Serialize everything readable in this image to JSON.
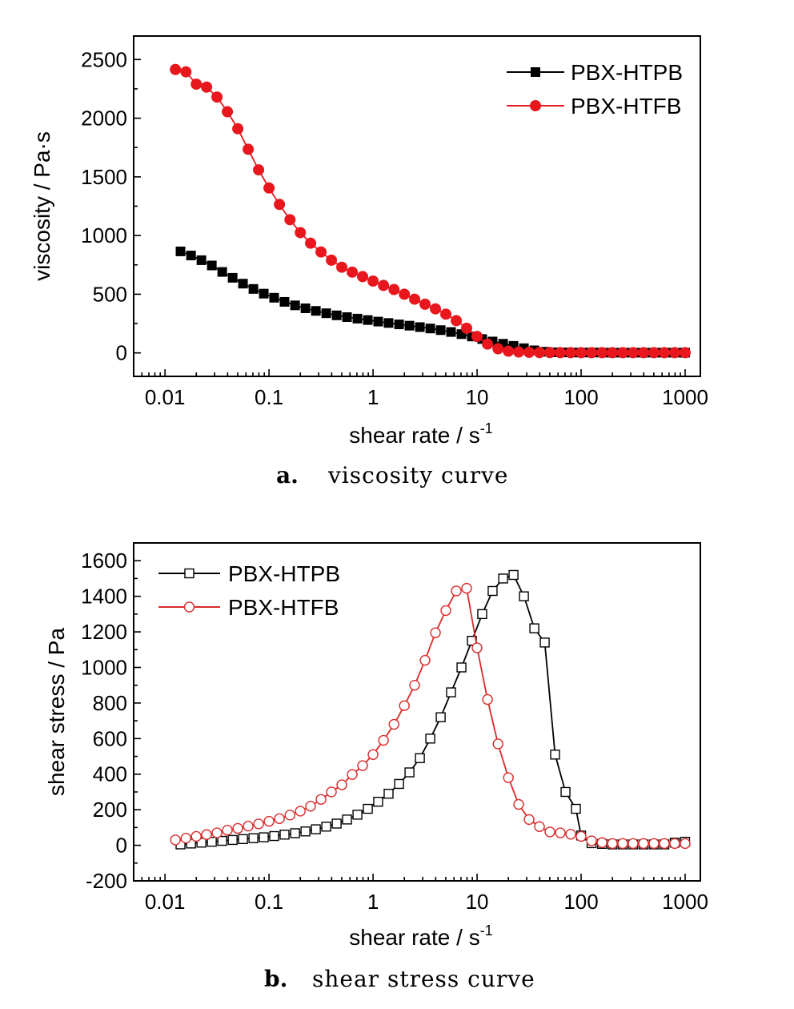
{
  "chart_data": [
    {
      "type": "line",
      "xscale": "log",
      "xlim": [
        0.005,
        1400
      ],
      "ylim": [
        -200,
        2700
      ],
      "xticks": [
        0.01,
        0.1,
        1,
        10,
        100,
        1000
      ],
      "xtick_labels": [
        "0.01",
        "0.1",
        "1",
        "10",
        "100",
        "1000"
      ],
      "yticks": [
        0,
        500,
        1000,
        1500,
        2000,
        2500
      ],
      "ytick_labels": [
        "0",
        "500",
        "1000",
        "1500",
        "2000",
        "2500"
      ],
      "xlabel": "shear rate / s",
      "xlabel_sup": "-1",
      "ylabel": "viscosity / Pa·s",
      "legend_position": "top-right",
      "caption_letter": "a.",
      "caption_text": "viscosity curve",
      "series": [
        {
          "name": "PBX-HTPB",
          "color": "#000000",
          "marker": "square-filled",
          "x": [
            0.0141,
            0.0178,
            0.0224,
            0.0282,
            0.0355,
            0.0447,
            0.0562,
            0.0708,
            0.0891,
            0.112,
            0.141,
            0.178,
            0.224,
            0.282,
            0.355,
            0.447,
            0.562,
            0.708,
            0.891,
            1.12,
            1.41,
            1.78,
            2.24,
            2.82,
            3.55,
            4.47,
            5.62,
            7.08,
            8.91,
            11.2,
            14.1,
            17.8,
            22.4,
            28.2,
            35.5,
            44.7,
            56.2,
            70.8,
            89.1,
            112,
            141,
            178,
            224,
            282,
            355,
            447,
            562,
            708,
            891,
            1000
          ],
          "y": [
            865,
            830,
            790,
            745,
            690,
            640,
            590,
            545,
            505,
            470,
            435,
            405,
            380,
            358,
            338,
            320,
            305,
            292,
            280,
            267,
            255,
            243,
            232,
            220,
            208,
            194,
            178,
            160,
            140,
            118,
            97,
            78,
            60,
            40,
            22,
            10,
            5,
            4,
            3,
            3,
            3,
            2,
            2,
            2,
            2,
            2,
            2,
            2,
            2,
            2
          ]
        },
        {
          "name": "PBX-HTFB",
          "color": "#e8171e",
          "marker": "circle-filled",
          "x": [
            0.0126,
            0.0159,
            0.02,
            0.0251,
            0.0316,
            0.0398,
            0.0501,
            0.0631,
            0.0794,
            0.1,
            0.126,
            0.159,
            0.2,
            0.251,
            0.316,
            0.398,
            0.501,
            0.631,
            0.794,
            1.0,
            1.26,
            1.59,
            2.0,
            2.51,
            3.16,
            3.98,
            5.01,
            6.31,
            7.94,
            10.0,
            12.6,
            15.9,
            20.0,
            25.1,
            31.6,
            39.8,
            50.1,
            63.1,
            79.4,
            100,
            126,
            159,
            200,
            251,
            316,
            398,
            501,
            631,
            794,
            1000
          ],
          "y": [
            2415,
            2395,
            2290,
            2265,
            2180,
            2055,
            1910,
            1735,
            1560,
            1405,
            1265,
            1135,
            1025,
            935,
            860,
            790,
            730,
            688,
            650,
            612,
            575,
            540,
            500,
            458,
            415,
            375,
            330,
            275,
            210,
            140,
            75,
            35,
            15,
            8,
            5,
            3,
            3,
            2,
            2,
            2,
            2,
            2,
            2,
            2,
            2,
            2,
            2,
            2,
            2,
            2
          ]
        }
      ]
    },
    {
      "type": "line",
      "xscale": "log",
      "xlim": [
        0.005,
        1400
      ],
      "ylim": [
        -200,
        1700
      ],
      "xticks": [
        0.01,
        0.1,
        1,
        10,
        100,
        1000
      ],
      "xtick_labels": [
        "0.01",
        "0.1",
        "1",
        "10",
        "100",
        "1000"
      ],
      "yticks": [
        -200,
        0,
        200,
        400,
        600,
        800,
        1000,
        1200,
        1400,
        1600
      ],
      "ytick_labels": [
        "-200",
        "0",
        "200",
        "400",
        "600",
        "800",
        "1000",
        "1200",
        "1400",
        "1600"
      ],
      "xlabel": "shear rate / s",
      "xlabel_sup": "-1",
      "ylabel": "shear stress / Pa",
      "legend_position": "top-left",
      "caption_letter": "b.",
      "caption_text": "shear stress curve",
      "series": [
        {
          "name": "PBX-HTPB",
          "color": "#000000",
          "marker": "square-open",
          "x": [
            0.0141,
            0.0178,
            0.0224,
            0.0282,
            0.0355,
            0.0447,
            0.0562,
            0.0708,
            0.0891,
            0.112,
            0.141,
            0.178,
            0.224,
            0.282,
            0.355,
            0.447,
            0.562,
            0.708,
            0.891,
            1.12,
            1.41,
            1.78,
            2.24,
            2.82,
            3.55,
            4.47,
            5.62,
            7.08,
            8.91,
            11.2,
            14.1,
            17.8,
            22.4,
            28.2,
            35.5,
            44.7,
            56.2,
            70.8,
            89.1,
            100,
            126,
            159,
            200,
            251,
            316,
            398,
            501,
            631,
            794,
            1000
          ],
          "y": [
            5,
            10,
            15,
            20,
            25,
            30,
            35,
            40,
            45,
            52,
            60,
            68,
            78,
            90,
            105,
            122,
            145,
            172,
            205,
            245,
            290,
            345,
            410,
            490,
            600,
            720,
            860,
            1000,
            1150,
            1300,
            1430,
            1500,
            1520,
            1400,
            1220,
            1140,
            510,
            300,
            205,
            55,
            12,
            8,
            5,
            5,
            5,
            5,
            5,
            5,
            15,
            20
          ]
        },
        {
          "name": "PBX-HTFB",
          "color": "#d92a2a",
          "marker": "circle-open",
          "x": [
            0.0126,
            0.0159,
            0.02,
            0.0251,
            0.0316,
            0.0398,
            0.0501,
            0.0631,
            0.0794,
            0.1,
            0.126,
            0.159,
            0.2,
            0.251,
            0.316,
            0.398,
            0.501,
            0.631,
            0.794,
            1.0,
            1.26,
            1.59,
            2.0,
            2.51,
            3.16,
            3.98,
            5.01,
            6.31,
            7.94,
            10.0,
            12.6,
            15.9,
            20.0,
            25.1,
            31.6,
            39.8,
            50.1,
            63.1,
            79.4,
            100,
            126,
            159,
            200,
            251,
            316,
            398,
            501,
            631,
            794,
            1000
          ],
          "y": [
            30,
            40,
            50,
            60,
            70,
            85,
            95,
            108,
            120,
            135,
            150,
            170,
            192,
            220,
            258,
            300,
            340,
            398,
            448,
            510,
            590,
            680,
            785,
            900,
            1040,
            1195,
            1320,
            1430,
            1445,
            1110,
            820,
            570,
            380,
            230,
            145,
            105,
            75,
            70,
            62,
            50,
            25,
            15,
            10,
            10,
            10,
            10,
            10,
            10,
            10,
            10
          ]
        }
      ]
    }
  ]
}
